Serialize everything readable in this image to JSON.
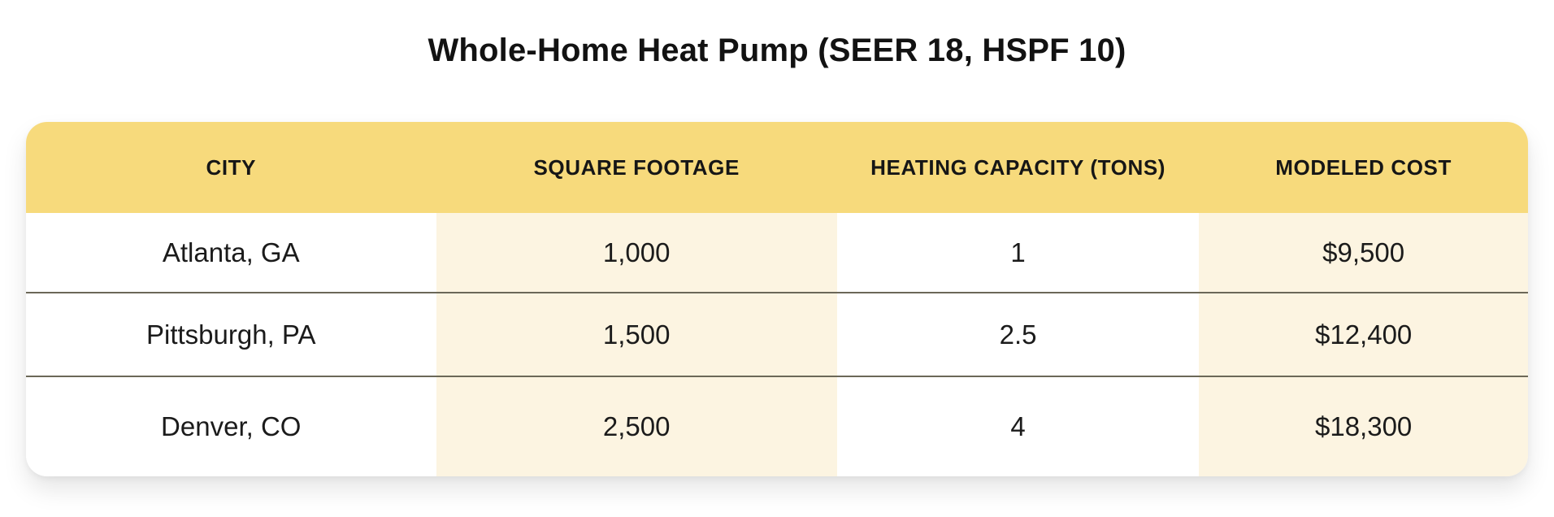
{
  "title": "Whole-Home Heat Pump (SEER 18, HSPF 10)",
  "chart_data": {
    "type": "table",
    "title": "Whole-Home Heat Pump (SEER 18, HSPF 10)",
    "columns": [
      "CITY",
      "SQUARE FOOTAGE",
      "HEATING CAPACITY (TONS)",
      "MODELED COST"
    ],
    "rows": [
      [
        "Atlanta, GA",
        "1,000",
        "1",
        "$9,500"
      ],
      [
        "Pittsburgh, PA",
        "1,500",
        "2.5",
        "$12,400"
      ],
      [
        "Denver, CO",
        "2,500",
        "4",
        "$18,300"
      ]
    ],
    "numeric": {
      "square_footage": [
        1000,
        1500,
        2500
      ],
      "heating_capacity_tons": [
        1,
        2.5,
        4
      ],
      "modeled_cost_usd": [
        9500,
        12400,
        18300
      ]
    },
    "striped_columns": [
      1,
      3
    ],
    "layout": "header row yellow, data columns 2 and 4 cream-striped, thin dark dividers between data rows"
  },
  "colors": {
    "header_bg": "#f7da7c",
    "stripe_bg": "#fcf4e1",
    "divider": "#6b6858",
    "text": "#161616",
    "page_bg": "#ffffff"
  }
}
